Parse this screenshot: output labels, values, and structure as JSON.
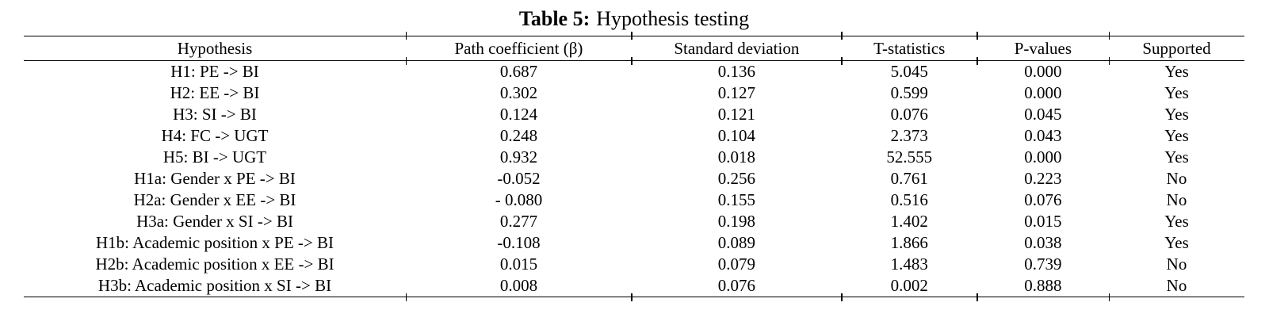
{
  "title": {
    "label": "Table 5:",
    "text": "Hypothesis testing"
  },
  "table": {
    "columns": [
      "Hypothesis",
      "Path coefficient (β)",
      "Standard deviation",
      "T-statistics",
      "P-values",
      "Supported"
    ],
    "rows": [
      [
        "H1: PE -> BI",
        "0.687",
        "0.136",
        "5.045",
        "0.000",
        "Yes"
      ],
      [
        "H2: EE -> BI",
        "0.302",
        "0.127",
        "0.599",
        "0.000",
        "Yes"
      ],
      [
        "H3: SI -> BI",
        "0.124",
        "0.121",
        "0.076",
        "0.045",
        "Yes"
      ],
      [
        "H4: FC -> UGT",
        "0.248",
        "0.104",
        "2.373",
        "0.043",
        "Yes"
      ],
      [
        "H5: BI -> UGT",
        "0.932",
        "0.018",
        "52.555",
        "0.000",
        "Yes"
      ],
      [
        "H1a: Gender x PE -> BI",
        "-0.052",
        "0.256",
        "0.761",
        "0.223",
        "No"
      ],
      [
        "H2a: Gender x EE -> BI",
        "- 0.080",
        "0.155",
        "0.516",
        "0.076",
        "No"
      ],
      [
        "H3a: Gender x SI -> BI",
        "0.277",
        "0.198",
        "1.402",
        "0.015",
        "Yes"
      ],
      [
        "H1b: Academic position x PE -> BI",
        "-0.108",
        "0.089",
        "1.866",
        "0.038",
        "Yes"
      ],
      [
        "H2b: Academic position x EE -> BI",
        "0.015",
        "0.079",
        "1.483",
        "0.739",
        "No"
      ],
      [
        "H3b: Academic position x SI -> BI",
        "0.008",
        "0.076",
        "0.002",
        "0.888",
        "No"
      ]
    ]
  }
}
